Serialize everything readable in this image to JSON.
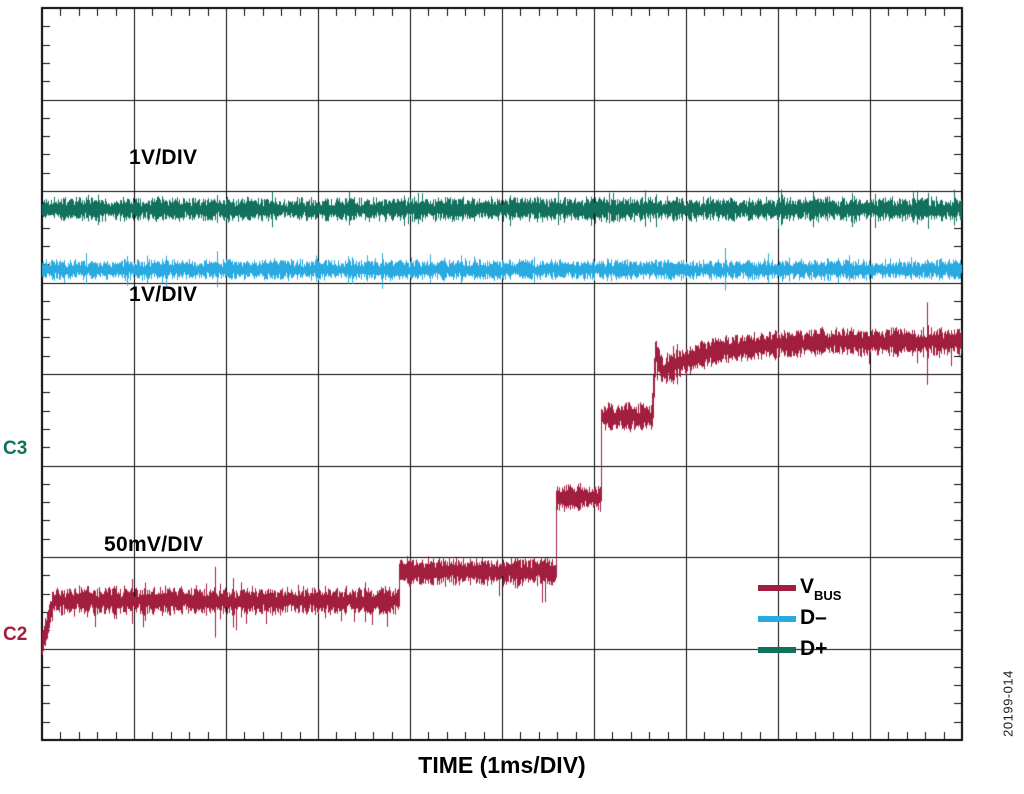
{
  "figure": {
    "figure_number": "20199-014",
    "channel_markers": {
      "c3": {
        "text": "C3",
        "color": "#12705F"
      },
      "c2": {
        "text": "C2",
        "color": "#A21E3F"
      }
    }
  },
  "legend": {
    "position": "lower-right",
    "items": [
      {
        "label_main": "V",
        "label_sub": "BUS",
        "color": "#A21E3F"
      },
      {
        "label_main": "D–",
        "label_sub": "",
        "color": "#29ABE2"
      },
      {
        "label_main": "D+",
        "label_sub": "",
        "color": "#12705F"
      }
    ]
  },
  "chart_data": {
    "type": "line",
    "title": "",
    "xlabel": "TIME (1ms/DIV)",
    "x_unit_per_div": "1ms",
    "x_divisions": 10,
    "y_divisions": 8,
    "minor_ticks_per_div": 5,
    "grid": true,
    "legend_position": "lower right",
    "series": [
      {
        "name": "D+",
        "channel": "C3",
        "color": "#12705F",
        "scale": "1V/DIV",
        "noise_div": 0.085,
        "profile": [
          {
            "t0": 0.0,
            "t1": 10.0,
            "type": "flat",
            "level": 2.2
          }
        ]
      },
      {
        "name": "D–",
        "channel": "",
        "color": "#29ABE2",
        "scale": "1V/DIV",
        "noise_div": 0.072,
        "profile": [
          {
            "t0": 0.0,
            "t1": 10.0,
            "type": "flat",
            "level": 2.86
          }
        ]
      },
      {
        "name": "VBUS",
        "channel": "C2",
        "color": "#A21E3F",
        "scale": "50mV/DIV",
        "noise_div": 0.1,
        "profile": [
          {
            "t0": 0.0,
            "t1": 0.12,
            "type": "ramp",
            "from": 6.96,
            "to": 6.48
          },
          {
            "t0": 0.12,
            "t1": 3.88,
            "type": "flat",
            "level": 6.48
          },
          {
            "t0": 3.88,
            "t1": 5.59,
            "type": "flat",
            "level": 6.16
          },
          {
            "t0": 5.59,
            "t1": 6.08,
            "type": "flat",
            "level": 5.35
          },
          {
            "t0": 6.08,
            "t1": 6.63,
            "type": "flat",
            "level": 4.47
          },
          {
            "t0": 6.63,
            "t1": 6.67,
            "type": "ramp",
            "from": 4.47,
            "to": 3.72
          },
          {
            "t0": 6.67,
            "t1": 6.74,
            "type": "ramp",
            "from": 3.72,
            "to": 3.98
          },
          {
            "t0": 6.74,
            "t1": 8.3,
            "type": "settle",
            "from": 3.98,
            "to": 3.65
          },
          {
            "t0": 8.3,
            "t1": 10.0,
            "type": "flat",
            "level": 3.65
          }
        ]
      }
    ]
  }
}
